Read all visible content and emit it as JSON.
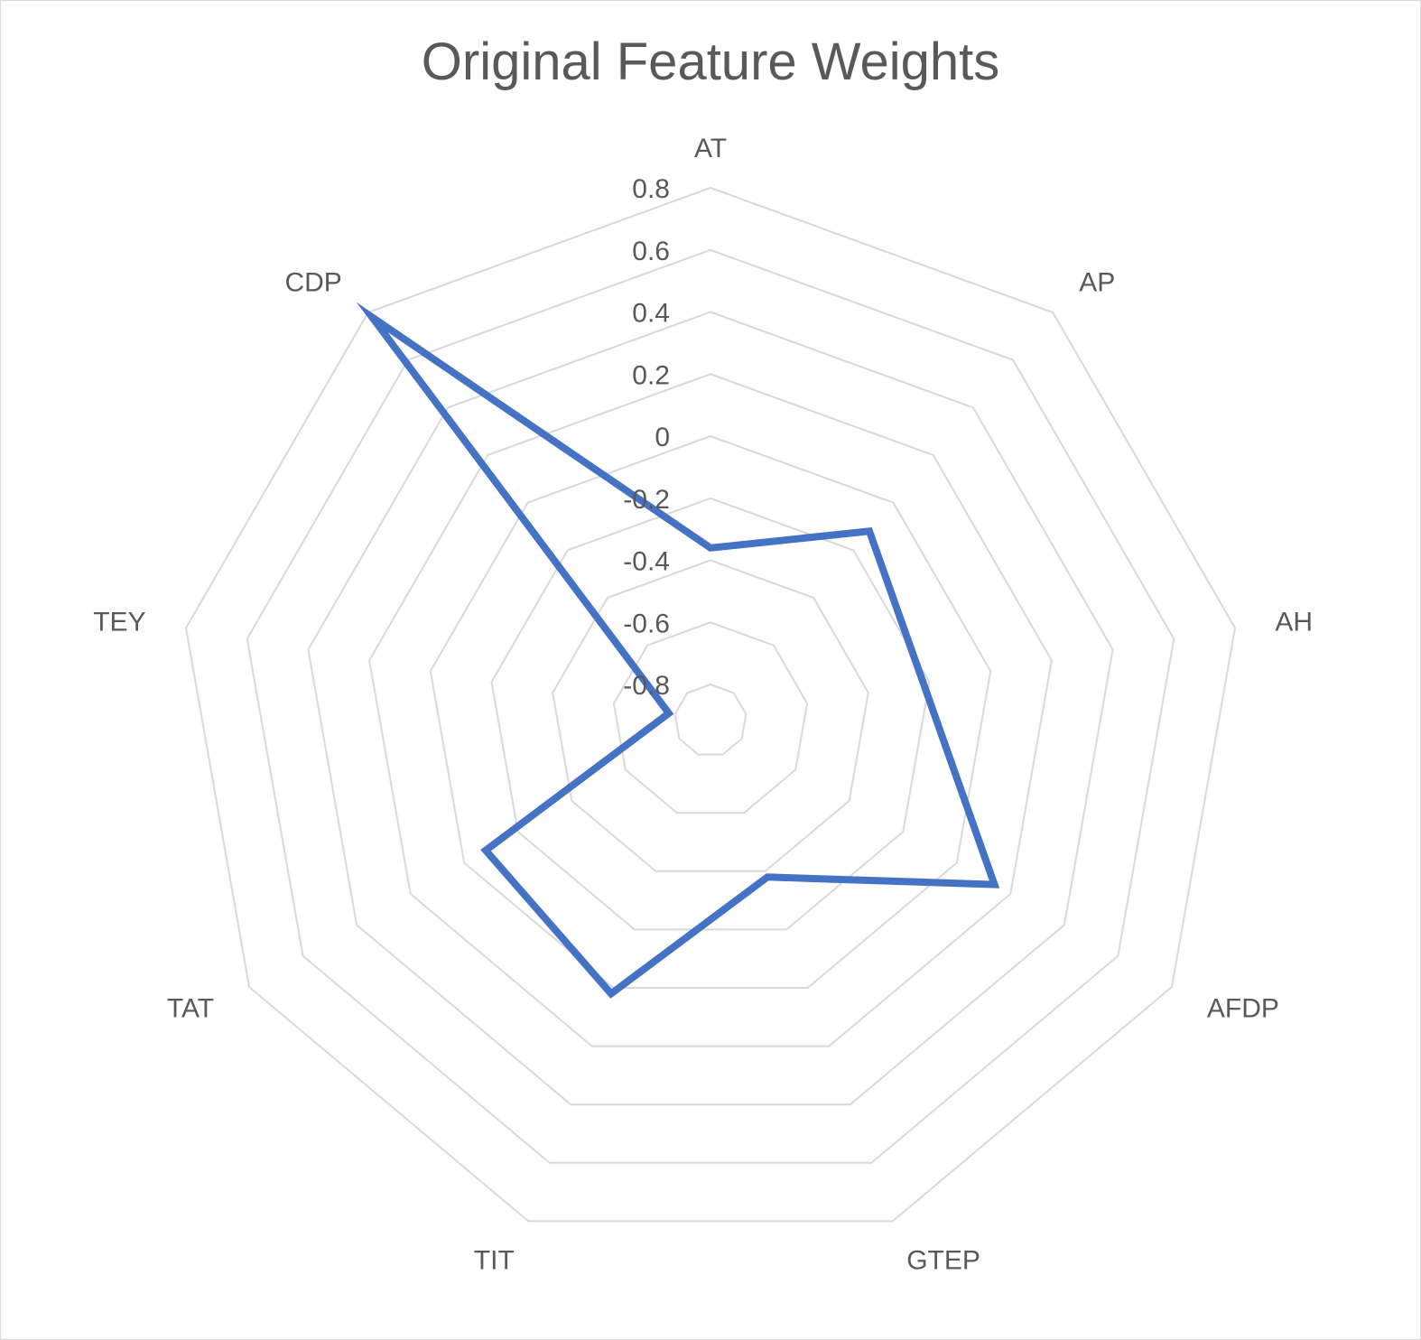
{
  "chart_data": {
    "type": "radar",
    "title": "Original Feature Weights",
    "categories": [
      "AT",
      "AP",
      "AH",
      "AFDP",
      "GTEP",
      "TIT",
      "TAT",
      "TEY",
      "CDP"
    ],
    "series": [
      {
        "values": [
          -0.36,
          -0.12,
          -0.22,
          0.14,
          -0.38,
          0.02,
          -0.08,
          -0.78,
          0.78
        ]
      }
    ],
    "rlim": [
      -0.8,
      0.8
    ],
    "ticks": [
      "0.8",
      "0.6",
      "0.4",
      "0.2",
      "0",
      "-0.2",
      "-0.4",
      "-0.6",
      "-0.8"
    ],
    "tick_values": [
      0.8,
      0.6,
      0.4,
      0.2,
      0,
      -0.2,
      -0.4,
      -0.6,
      -0.8
    ],
    "grid": true,
    "legend": "none",
    "colors": {
      "series": "#4472c4",
      "grid": "#d9d9d9",
      "text": "#595959"
    }
  }
}
